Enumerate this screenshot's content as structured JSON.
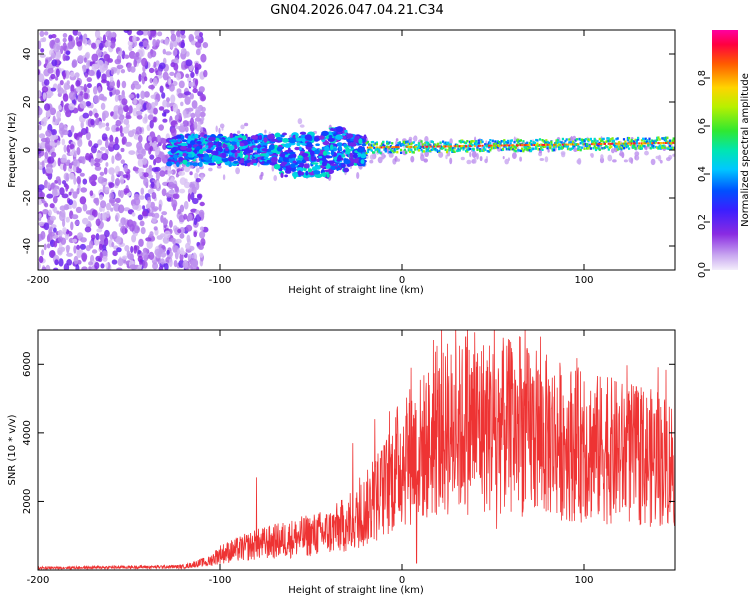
{
  "title": "GN04.2026.047.04.21.C34",
  "chart_data": [
    {
      "type": "heatmap",
      "xlabel": "Height of straight line (km)",
      "ylabel": "Frequency (Hz)",
      "xlim": [
        -200,
        150
      ],
      "ylim": [
        -50,
        50
      ],
      "xticks": [
        -200,
        -100,
        0,
        100
      ],
      "yticks": [
        -40,
        -20,
        0,
        20,
        40
      ],
      "colorbar": {
        "label": "Normalized spectral amplitude",
        "range": [
          0,
          1
        ],
        "ticks": [
          0.0,
          0.2,
          0.4,
          0.6,
          0.8
        ],
        "tick_labels": [
          "0.0",
          "0.2",
          "0.4",
          "0.6",
          "0.8"
        ]
      },
      "regions": [
        {
          "name": "noise",
          "x_range": [
            -200,
            -108
          ],
          "freq_range": [
            -50,
            50
          ],
          "amplitude": 0.15
        },
        {
          "name": "track-turbulent",
          "x_range": [
            -128,
            -20
          ],
          "center_freq": 0,
          "width_hz": 6,
          "amplitude": 0.35
        },
        {
          "name": "track-steady",
          "x_range": [
            -20,
            150
          ],
          "center_freq": [
            1,
            3
          ],
          "width_hz": 3,
          "amplitude": 0.85
        }
      ]
    },
    {
      "type": "line",
      "xlabel": "Height of straight line (km)",
      "ylabel": "SNR (10 * v/v)",
      "xlim": [
        -200,
        150
      ],
      "ylim": [
        0,
        7000
      ],
      "xticks": [
        -200,
        -100,
        0,
        100
      ],
      "yticks": [
        2000,
        4000,
        6000
      ],
      "color": "#ee3333",
      "envelope": [
        {
          "x": -200,
          "y": 50
        },
        {
          "x": -120,
          "y": 80
        },
        {
          "x": -108,
          "y": 200
        },
        {
          "x": -100,
          "y": 500
        },
        {
          "x": -80,
          "y": 800
        },
        {
          "x": -60,
          "y": 1000
        },
        {
          "x": -40,
          "y": 1200
        },
        {
          "x": -25,
          "y": 1600
        },
        {
          "x": -10,
          "y": 2500
        },
        {
          "x": 0,
          "y": 3500
        },
        {
          "x": 10,
          "y": 3800
        },
        {
          "x": 20,
          "y": 4200
        },
        {
          "x": 40,
          "y": 4600
        },
        {
          "x": 60,
          "y": 4500
        },
        {
          "x": 80,
          "y": 4200
        },
        {
          "x": 100,
          "y": 3900
        },
        {
          "x": 120,
          "y": 3700
        },
        {
          "x": 150,
          "y": 3400
        }
      ],
      "peaks": [
        {
          "x": -80,
          "y": 2700
        },
        {
          "x": -27,
          "y": 3700
        },
        {
          "x": -15,
          "y": 4400
        },
        {
          "x": 5,
          "y": 5900
        },
        {
          "x": 8,
          "y": 7000
        },
        {
          "x": 25,
          "y": 6600
        },
        {
          "x": 35,
          "y": 6800
        },
        {
          "x": 55,
          "y": 6400
        },
        {
          "x": 65,
          "y": 6800
        },
        {
          "x": 100,
          "y": 5500
        }
      ],
      "dips": [
        {
          "x": 8,
          "y": 200
        },
        {
          "x": 52,
          "y": 1200
        },
        {
          "x": 145,
          "y": 2000
        }
      ]
    }
  ]
}
